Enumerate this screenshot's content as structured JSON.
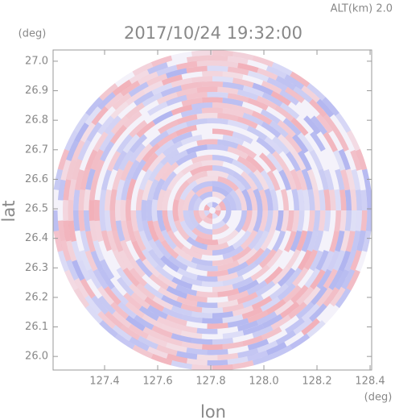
{
  "chart_data": {
    "type": "radar-image",
    "annotation": "ALT(km) 2.0",
    "title": "2017/10/24 19:32:00",
    "y_unit": "(deg)",
    "x_unit": "(deg)",
    "xlabel": "lon",
    "ylabel": "lat",
    "xlim": [
      127.206,
      128.406
    ],
    "ylim": [
      25.954,
      27.038
    ],
    "xticks": [
      127.4,
      127.6,
      127.8,
      {
        "value": 128.0,
        "label": "128.0"
      },
      128.2,
      128.4
    ],
    "yticks": [
      {
        "value": 26.0,
        "label": "26.0"
      },
      26.1,
      26.2,
      26.3,
      26.4,
      26.5,
      26.6,
      26.7,
      26.8,
      26.9,
      {
        "value": 27.0,
        "label": "27.0"
      }
    ]
  }
}
